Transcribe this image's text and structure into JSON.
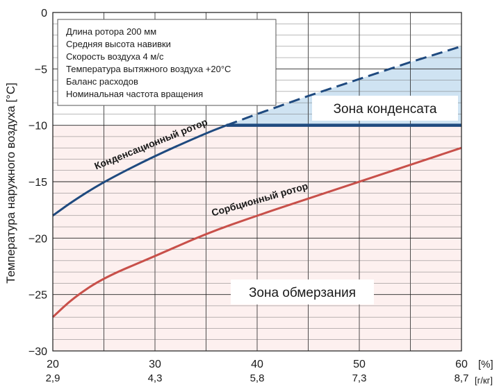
{
  "chart_data": {
    "type": "line",
    "ylabel": "Температура наружного воздуха [°C]",
    "ylim": [
      -30,
      0
    ],
    "yticks": [
      0,
      -5,
      -10,
      -15,
      -20,
      -25,
      -30
    ],
    "ytick_labels": [
      "0",
      "−5",
      "−10",
      "−15",
      "−20",
      "−25",
      "−30"
    ],
    "xlim": [
      20,
      60
    ],
    "xticks": [
      20,
      30,
      40,
      50,
      60
    ],
    "xtick_labels": [
      "20",
      "30",
      "40",
      "50",
      "60"
    ],
    "xtick_labels_secondary": [
      "2,9",
      "4,3",
      "5,8",
      "7,3",
      "8,7"
    ],
    "x_unit": "[%]",
    "x_unit_secondary": "[г/кг]",
    "grid": true,
    "legend_lines": [
      "Длина ротора 200 мм",
      "Средняя высота навивки",
      "Скорость воздуха 4 м/с",
      "Температура вытяжного воздуха +20°C",
      "Баланс расходов",
      "Номинальная частота вращения"
    ],
    "series": [
      {
        "name": "Конденсационный ротор",
        "color": "#1f4a7f",
        "x": [
          20,
          22,
          25,
          30,
          35,
          37
        ],
        "y": [
          -18,
          -16.7,
          -15,
          -12.7,
          -10.7,
          -10
        ]
      },
      {
        "name": "",
        "color": "#1f4a7f",
        "style": "dashed",
        "x": [
          37,
          40,
          45,
          50,
          55,
          60
        ],
        "y": [
          -10,
          -9,
          -7.4,
          -5.9,
          -4.4,
          -3
        ]
      },
      {
        "name": "",
        "color": "#1f4a7f",
        "style": "thick",
        "x": [
          37,
          60
        ],
        "y": [
          -10,
          -10
        ]
      },
      {
        "name": "Сорбционный ротор",
        "color": "#c8504a",
        "x": [
          20,
          22,
          25,
          30,
          35,
          40,
          45,
          50,
          55,
          60
        ],
        "y": [
          -27,
          -25.3,
          -23.5,
          -21.6,
          -19.6,
          -18,
          -16.5,
          -15,
          -13.5,
          -12
        ]
      }
    ],
    "zones": {
      "condensate": "Зона конденсата",
      "freezing": "Зона обмерзания"
    }
  }
}
